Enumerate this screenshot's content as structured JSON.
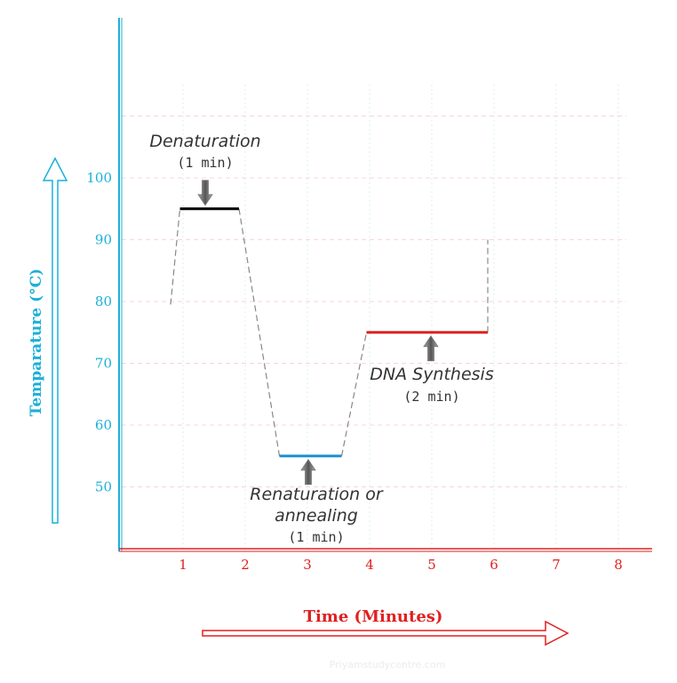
{
  "chart_data": {
    "type": "line",
    "title": "",
    "xlabel": "Time (Minutes)",
    "ylabel": "Temparature (°C)",
    "x_ticks": [
      "1",
      "2",
      "3",
      "4",
      "5",
      "6",
      "7",
      "8"
    ],
    "y_ticks": [
      "50",
      "60",
      "70",
      "80",
      "90",
      "100"
    ],
    "xlim": [
      0,
      8
    ],
    "ylim": [
      40,
      120
    ],
    "grid": true,
    "colors": {
      "y_axis": "#1ab0d8",
      "x_axis": "#e02020",
      "denaturation": "#000000",
      "annealing": "#1e90d0",
      "synthesis": "#e02020",
      "transition": "#888888"
    },
    "transitions": [
      {
        "x": [
          0.8,
          0.95
        ],
        "y": [
          79.5,
          95
        ]
      },
      {
        "x": [
          1.9,
          2.55
        ],
        "y": [
          95,
          55
        ]
      },
      {
        "x": [
          3.55,
          3.95
        ],
        "y": [
          55,
          75
        ]
      },
      {
        "x": [
          5.9,
          5.9
        ],
        "y": [
          75,
          90
        ]
      }
    ],
    "steps": [
      {
        "name": "denaturation",
        "label": "Denaturation",
        "duration": "(1 min)",
        "x_start": 0.95,
        "x_end": 1.9,
        "y": 95
      },
      {
        "name": "annealing",
        "label": "Renaturation or",
        "label2": "annealing",
        "duration": "(1 min)",
        "x_start": 2.55,
        "x_end": 3.55,
        "y": 55
      },
      {
        "name": "synthesis",
        "label": "DNA Synthesis",
        "duration": "(2 min)",
        "x_start": 3.95,
        "x_end": 5.9,
        "y": 75
      }
    ]
  },
  "watermark": "Priyamstudycentre.com"
}
